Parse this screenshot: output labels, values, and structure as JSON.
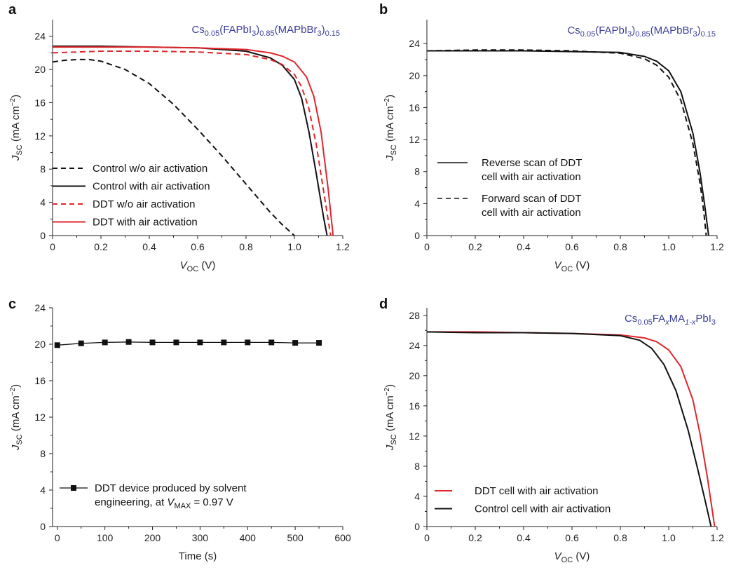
{
  "colors": {
    "red": "#e0262b",
    "black": "#111111",
    "composition": "#3b3f99"
  },
  "chart_data": [
    {
      "panel": "a",
      "type": "line",
      "composition": {
        "parts": [
          {
            "t": "Cs",
            "s": "n"
          },
          {
            "t": "0.05",
            "s": "sub"
          },
          {
            "t": "(FAPbI",
            "s": "n"
          },
          {
            "t": "3",
            "s": "sub"
          },
          {
            "t": ")",
            "s": "n"
          },
          {
            "t": "0.85",
            "s": "sub"
          },
          {
            "t": "(MAPbBr",
            "s": "n"
          },
          {
            "t": "3",
            "s": "sub"
          },
          {
            "t": ")",
            "s": "n"
          },
          {
            "t": "0.15",
            "s": "sub"
          }
        ]
      },
      "xlabel": {
        "main": "V",
        "sub": "OC",
        "unit": " (V)"
      },
      "ylabel": {
        "main": "J",
        "sub": "SC",
        "unit": " (mA cm",
        "sup": "−2",
        "close": ")"
      },
      "xlim": [
        0,
        1.2
      ],
      "ylim": [
        0,
        26
      ],
      "xticks": [
        0,
        0.2,
        0.4,
        0.6,
        0.8,
        1.0,
        1.2
      ],
      "xtick_labels": [
        "0",
        "0.2",
        "0.4",
        "0.6",
        "0.8",
        "1.0",
        "1.2"
      ],
      "yticks": [
        0,
        4,
        8,
        12,
        16,
        20,
        24
      ],
      "ytick_labels": [
        "0",
        "4",
        "8",
        "12",
        "16",
        "20",
        "24"
      ],
      "legend_position": "lower-left",
      "series": [
        {
          "name": "Control w/o air activation",
          "color": "#111111",
          "dash": "dashed",
          "x": [
            0,
            0.05,
            0.1,
            0.15,
            0.2,
            0.3,
            0.4,
            0.5,
            0.6,
            0.7,
            0.8,
            0.9,
            0.95,
            1.0
          ],
          "y": [
            20.9,
            21.1,
            21.2,
            21.2,
            21.0,
            20.0,
            18.3,
            15.8,
            12.8,
            9.6,
            6.2,
            2.8,
            1.3,
            0.0
          ]
        },
        {
          "name": "Control with air activation",
          "color": "#111111",
          "dash": "solid",
          "x": [
            0,
            0.2,
            0.4,
            0.6,
            0.8,
            0.9,
            0.95,
            1.0,
            1.03,
            1.06,
            1.09,
            1.12,
            1.135
          ],
          "y": [
            22.8,
            22.8,
            22.7,
            22.6,
            22.2,
            21.4,
            20.5,
            18.8,
            16.5,
            12.5,
            7.5,
            2.3,
            0.0
          ]
        },
        {
          "name": "DDT w/o air activation",
          "color": "#e0262b",
          "dash": "dashed",
          "x": [
            0,
            0.2,
            0.4,
            0.6,
            0.8,
            0.9,
            0.95,
            1.0,
            1.03,
            1.06,
            1.09,
            1.12,
            1.15
          ],
          "y": [
            22.0,
            22.2,
            22.2,
            22.1,
            21.8,
            21.2,
            20.6,
            19.4,
            17.9,
            15.3,
            11.0,
            5.5,
            0.0
          ]
        },
        {
          "name": "DDT with air activation",
          "color": "#e0262b",
          "dash": "solid",
          "x": [
            0,
            0.2,
            0.4,
            0.6,
            0.8,
            0.9,
            0.95,
            1.0,
            1.05,
            1.08,
            1.11,
            1.14,
            1.16
          ],
          "y": [
            22.7,
            22.7,
            22.7,
            22.6,
            22.4,
            22.0,
            21.6,
            20.9,
            19.1,
            16.8,
            12.5,
            5.5,
            0.0
          ]
        }
      ]
    },
    {
      "panel": "b",
      "type": "line",
      "composition": {
        "parts": [
          {
            "t": "Cs",
            "s": "n"
          },
          {
            "t": "0.05",
            "s": "sub"
          },
          {
            "t": "(FAPbI",
            "s": "n"
          },
          {
            "t": "3",
            "s": "sub"
          },
          {
            "t": ")",
            "s": "n"
          },
          {
            "t": "0.85",
            "s": "sub"
          },
          {
            "t": "(MAPbBr",
            "s": "n"
          },
          {
            "t": "3",
            "s": "sub"
          },
          {
            "t": ")",
            "s": "n"
          },
          {
            "t": "0.15",
            "s": "sub"
          }
        ]
      },
      "xlabel": {
        "main": "V",
        "sub": "OC",
        "unit": " (V)"
      },
      "ylabel": {
        "main": "J",
        "sub": "SC",
        "unit": " (mA cm",
        "sup": "−2",
        "close": ")"
      },
      "xlim": [
        0,
        1.2
      ],
      "ylim": [
        0,
        27
      ],
      "xticks": [
        0,
        0.2,
        0.4,
        0.6,
        0.8,
        1.0,
        1.2
      ],
      "xtick_labels": [
        "0",
        "0.2",
        "0.4",
        "0.6",
        "0.8",
        "1.0",
        "1.2"
      ],
      "yticks": [
        0,
        4,
        8,
        12,
        16,
        20,
        24
      ],
      "ytick_labels": [
        "0",
        "4",
        "8",
        "12",
        "16",
        "20",
        "24"
      ],
      "legend_position": "lower-left",
      "series": [
        {
          "name": "Reverse scan of DDT cell with air activation",
          "label_lines": [
            "Reverse scan of DDT",
            "cell with air activation"
          ],
          "color": "#111111",
          "dash": "solid",
          "x": [
            0,
            0.2,
            0.4,
            0.6,
            0.8,
            0.9,
            0.95,
            1.0,
            1.05,
            1.1,
            1.13,
            1.15,
            1.165
          ],
          "y": [
            23.1,
            23.1,
            23.1,
            23.0,
            22.9,
            22.4,
            21.8,
            20.6,
            18.0,
            12.8,
            7.8,
            3.5,
            0.0
          ]
        },
        {
          "name": "Forward scan of DDT cell with air activation",
          "label_lines": [
            "Forward scan of DDT",
            "cell with air activation"
          ],
          "color": "#111111",
          "dash": "dashed",
          "x": [
            0,
            0.2,
            0.4,
            0.6,
            0.8,
            0.9,
            0.95,
            1.0,
            1.05,
            1.1,
            1.13,
            1.145,
            1.155
          ],
          "y": [
            23.1,
            23.2,
            23.2,
            23.1,
            22.8,
            22.1,
            21.3,
            19.8,
            16.9,
            11.5,
            6.5,
            3.0,
            0.0
          ]
        }
      ]
    },
    {
      "panel": "c",
      "type": "line",
      "xlabel": {
        "main": "Time (s)"
      },
      "ylabel": {
        "main": "J",
        "sub": "SC",
        "unit": " (mA cm",
        "sup": "−2",
        "close": ")"
      },
      "xlim": [
        -10,
        600
      ],
      "ylim": [
        0,
        24
      ],
      "xticks": [
        0,
        100,
        200,
        300,
        400,
        500,
        600
      ],
      "xtick_labels": [
        "0",
        "100",
        "200",
        "300",
        "400",
        "500",
        "600"
      ],
      "yticks": [
        0,
        4,
        8,
        12,
        16,
        20,
        24
      ],
      "ytick_labels": [
        "0",
        "4",
        "8",
        "12",
        "16",
        "20",
        "24"
      ],
      "legend_position": "lower-left",
      "series": [
        {
          "name": "DDT device produced by solvent engineering, at V_MAX = 0.97 V",
          "label_line1": "DDT device produced by solvent",
          "label_line2": {
            "pre": "engineering, at ",
            "main": "V",
            "sub": "MAX",
            "post": " = 0.97 V"
          },
          "color": "#111111",
          "dash": "solid",
          "marker": "square",
          "x": [
            0,
            50,
            100,
            150,
            200,
            250,
            300,
            350,
            400,
            450,
            500,
            550
          ],
          "y": [
            19.9,
            20.1,
            20.2,
            20.25,
            20.2,
            20.2,
            20.2,
            20.2,
            20.2,
            20.2,
            20.15,
            20.15
          ]
        }
      ]
    },
    {
      "panel": "d",
      "type": "line",
      "composition": {
        "parts": [
          {
            "t": "Cs",
            "s": "n"
          },
          {
            "t": "0.05",
            "s": "sub"
          },
          {
            "t": "FA",
            "s": "n"
          },
          {
            "t": "x",
            "s": "subi"
          },
          {
            "t": "MA",
            "s": "n"
          },
          {
            "t": "1-x",
            "s": "subi"
          },
          {
            "t": "PbI",
            "s": "n"
          },
          {
            "t": "3",
            "s": "sub"
          }
        ]
      },
      "xlabel": {
        "main": "V",
        "sub": "OC",
        "unit": " (V)"
      },
      "ylabel": {
        "main": "J",
        "sub": "SC",
        "unit": " (mA cm",
        "sup": "−2",
        "close": ")"
      },
      "xlim": [
        0,
        1.2
      ],
      "ylim": [
        0,
        29
      ],
      "xticks": [
        0,
        0.2,
        0.4,
        0.6,
        0.8,
        1.0,
        1.2
      ],
      "xtick_labels": [
        "0",
        "0.2",
        "0.4",
        "0.6",
        "0.8",
        "1.0",
        "1.2"
      ],
      "yticks": [
        0,
        4,
        8,
        12,
        16,
        20,
        24,
        28
      ],
      "ytick_labels": [
        "0",
        "4",
        "8",
        "12",
        "16",
        "20",
        "24",
        "28"
      ],
      "legend_position": "lower-left",
      "series": [
        {
          "name": "DDT cell with air activation",
          "color": "#e0262b",
          "dash": "solid",
          "x": [
            0,
            0.2,
            0.4,
            0.6,
            0.8,
            0.9,
            0.95,
            1.0,
            1.05,
            1.1,
            1.13,
            1.16,
            1.19
          ],
          "y": [
            25.8,
            25.8,
            25.7,
            25.6,
            25.4,
            25.0,
            24.5,
            23.4,
            21.2,
            16.8,
            12.2,
            6.5,
            0.0
          ]
        },
        {
          "name": "Control cell with air activation",
          "color": "#111111",
          "dash": "solid",
          "x": [
            0,
            0.2,
            0.4,
            0.6,
            0.8,
            0.88,
            0.93,
            0.98,
            1.03,
            1.08,
            1.12,
            1.15,
            1.175
          ],
          "y": [
            25.8,
            25.7,
            25.7,
            25.6,
            25.3,
            24.7,
            23.6,
            21.5,
            18.0,
            12.8,
            7.6,
            3.5,
            0.0
          ]
        }
      ]
    }
  ]
}
